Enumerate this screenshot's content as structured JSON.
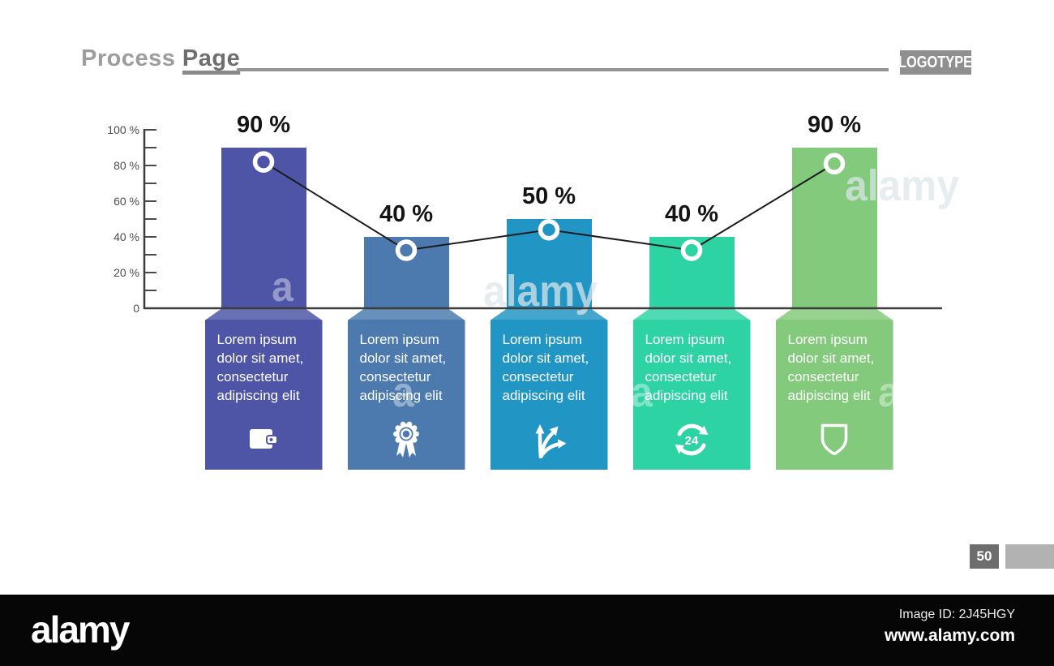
{
  "header": {
    "title_word1": "Process",
    "title_word2": "Page",
    "logotype": "LOGOTYPE"
  },
  "chart_data": {
    "type": "bar",
    "title": "",
    "categories": [
      "Lorem ipsum dolor sit amet, consectetur adipiscing elit",
      "Lorem ipsum dolor sit amet, consectetur adipiscing elit",
      "Lorem ipsum dolor sit amet, consectetur adipiscing elit",
      "Lorem ipsum dolor sit amet, consectetur adipiscing elit",
      "Lorem ipsum dolor sit amet, consectetur adipiscing elit"
    ],
    "bar_values": [
      90,
      40,
      50,
      40,
      90
    ],
    "bar_labels": [
      "90 %",
      "40 %",
      "50 %",
      "40 %",
      "90 %"
    ],
    "line_series": {
      "name": "trend-line",
      "values": [
        90,
        40,
        50,
        40,
        90
      ],
      "marker_pct": [
        82,
        32.5,
        44,
        32.5,
        81
      ]
    },
    "colors": [
      "#4e55a6",
      "#4d7aae",
      "#2196c4",
      "#2ed3a4",
      "#83ca7d"
    ],
    "ylim": [
      0,
      100
    ],
    "ytick_labels": [
      "100 %",
      "80 %",
      "60 %",
      "40 %",
      "20 %",
      "0"
    ],
    "minor_tick_step_pct": 10,
    "grid": false,
    "legend": false,
    "line_color": "#1b1b1b",
    "marker_ring_color": "#ffffff"
  },
  "columns": [
    {
      "text": "Lorem ipsum dolor sit amet, consectetur adipiscing elit",
      "icon": "wallet"
    },
    {
      "text": "Lorem ipsum dolor sit amet, consectetur adipiscing elit",
      "icon": "medal"
    },
    {
      "text": "Lorem ipsum dolor sit amet, consectetur adipiscing elit",
      "icon": "branching-arrows"
    },
    {
      "text": "Lorem ipsum dolor sit amet, consectetur adipiscing elit",
      "icon": "refresh-24",
      "icon_text": "24"
    },
    {
      "text": "Lorem ipsum dolor sit amet, consectetur adipiscing elit",
      "icon": "shield"
    }
  ],
  "slide_number": "50",
  "watermark": {
    "large": "alamy",
    "small": "a"
  },
  "footer": {
    "logo": "alamy",
    "image_id": "Image ID: 2J45HGY",
    "website": "www.alamy.com"
  }
}
